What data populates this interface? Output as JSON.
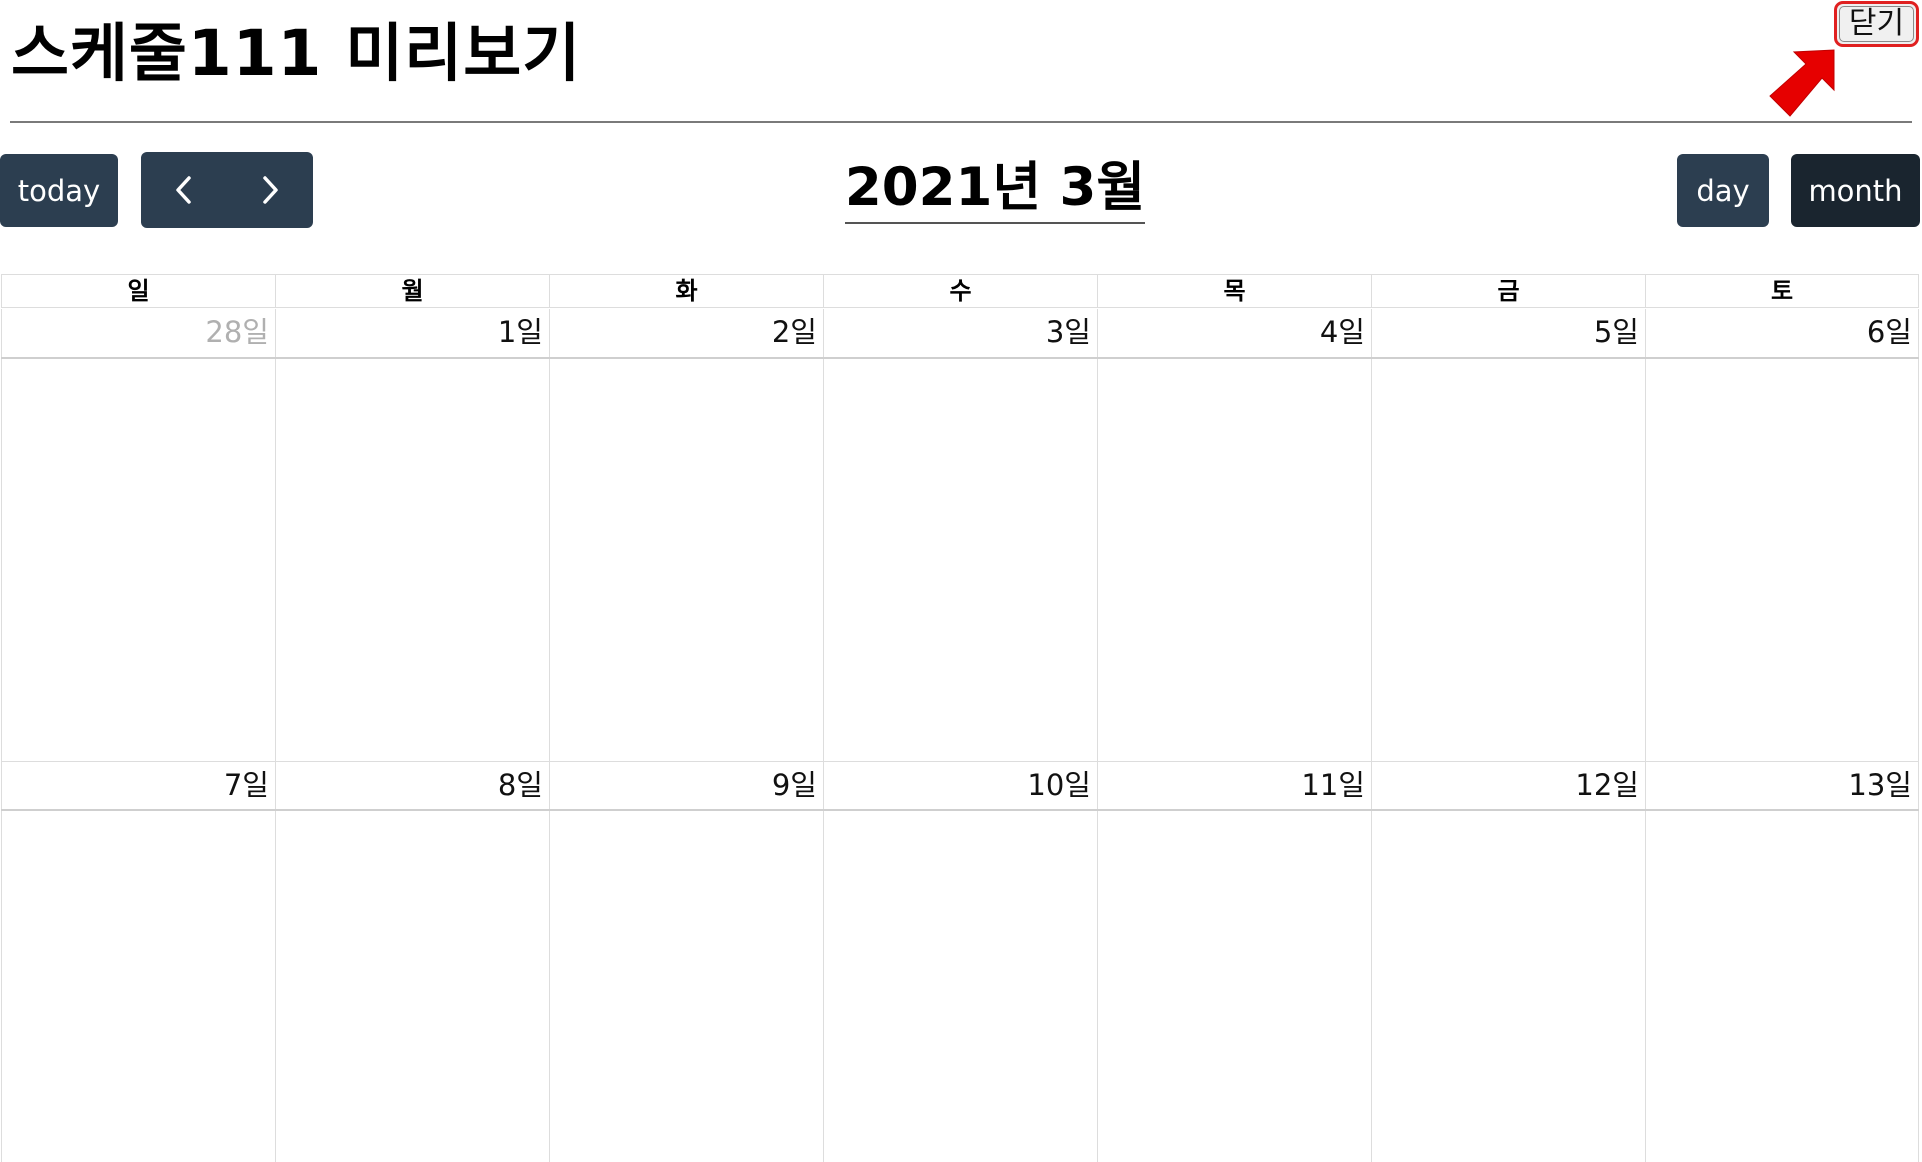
{
  "page": {
    "title": "스케줄111 미리보기",
    "close_label": "닫기",
    "annotation_color": "#e60000"
  },
  "toolbar": {
    "today_label": "today",
    "prev_icon": "chevron-left-icon",
    "next_icon": "chevron-right-icon",
    "month_title": "2021년 3월",
    "day_label": "day",
    "month_label": "month",
    "button_color": "#2c3e50",
    "active_button_color": "#1a252f",
    "active_view": "month"
  },
  "calendar": {
    "weekdays": [
      "일",
      "월",
      "화",
      "수",
      "목",
      "금",
      "토"
    ],
    "weeks": [
      {
        "days": [
          {
            "label": "28일",
            "other_month": true
          },
          {
            "label": "1일",
            "other_month": false
          },
          {
            "label": "2일",
            "other_month": false
          },
          {
            "label": "3일",
            "other_month": false
          },
          {
            "label": "4일",
            "other_month": false
          },
          {
            "label": "5일",
            "other_month": false
          },
          {
            "label": "6일",
            "other_month": false
          }
        ]
      },
      {
        "days": [
          {
            "label": "7일",
            "other_month": false
          },
          {
            "label": "8일",
            "other_month": false
          },
          {
            "label": "9일",
            "other_month": false
          },
          {
            "label": "10일",
            "other_month": false
          },
          {
            "label": "11일",
            "other_month": false
          },
          {
            "label": "12일",
            "other_month": false
          },
          {
            "label": "13일",
            "other_month": false
          }
        ]
      }
    ]
  }
}
